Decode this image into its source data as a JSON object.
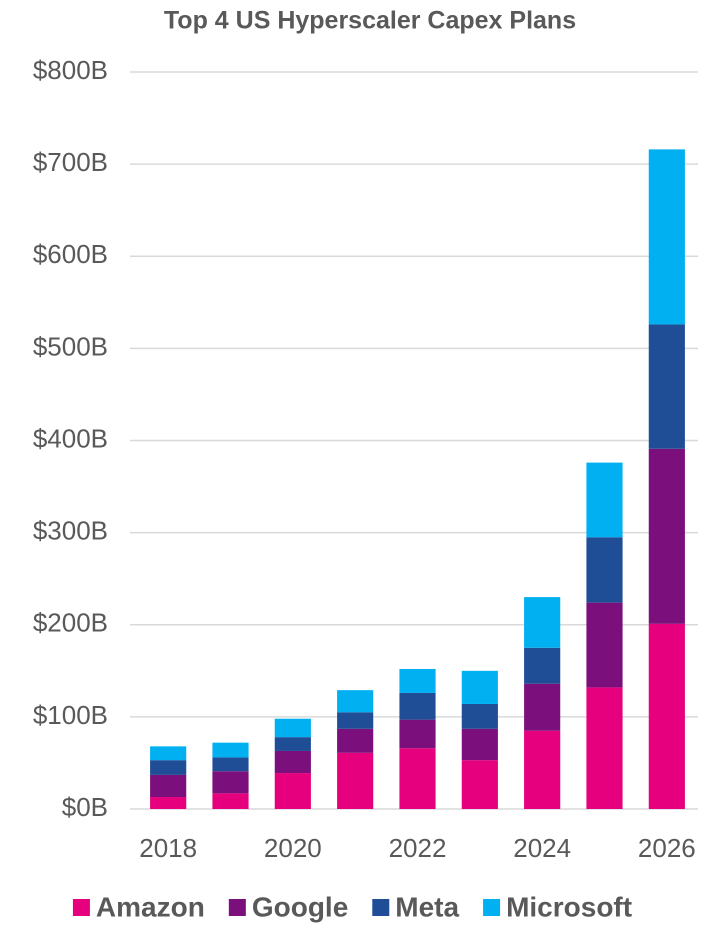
{
  "chart_data": {
    "type": "stacked_bar",
    "title": "Top 4 US Hyperscaler Capex Plans",
    "categories": [
      "2018",
      null,
      "2020",
      null,
      "2022",
      null,
      "2024",
      null,
      "2026"
    ],
    "series": [
      {
        "name": "Amazon",
        "color": "#e6007e",
        "values": [
          13,
          17,
          39,
          61,
          66,
          53,
          85,
          132,
          201
        ]
      },
      {
        "name": "Google",
        "color": "#7b0f7b",
        "values": [
          24,
          24,
          24,
          26,
          31,
          34,
          51,
          92,
          190
        ]
      },
      {
        "name": "Meta",
        "color": "#1f4e96",
        "values": [
          16,
          15,
          15,
          18,
          29,
          27,
          39,
          71,
          135
        ]
      },
      {
        "name": "Microsoft",
        "color": "#00b0f0",
        "values": [
          15,
          16,
          20,
          24,
          26,
          36,
          55,
          81,
          190
        ]
      }
    ],
    "ylim": [
      0,
      800
    ],
    "yticks": [
      {
        "value": 0,
        "label": "$0B"
      },
      {
        "value": 100,
        "label": "$100B"
      },
      {
        "value": 200,
        "label": "$200B"
      },
      {
        "value": 300,
        "label": "$300B"
      },
      {
        "value": 400,
        "label": "$400B"
      },
      {
        "value": 500,
        "label": "$500B"
      },
      {
        "value": 600,
        "label": "$600B"
      },
      {
        "value": 700,
        "label": "$700B"
      },
      {
        "value": 800,
        "label": "$800B"
      }
    ],
    "grid": true,
    "legend": "bottom"
  }
}
